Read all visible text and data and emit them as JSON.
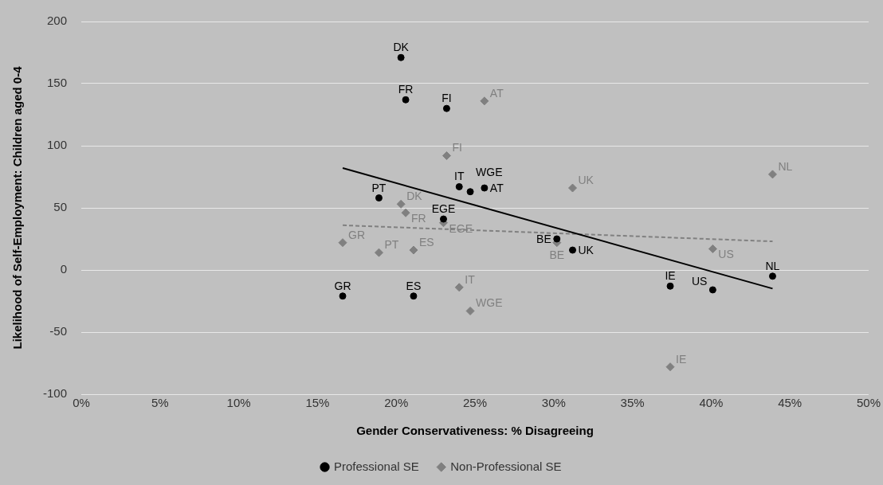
{
  "chart_data": {
    "type": "scatter",
    "xlabel": "Gender Conservativeness: % Disagreeing",
    "ylabel": "Likelihood of Self-Employment: Children aged 0-4",
    "xlim": [
      0,
      50
    ],
    "xticks": [
      {
        "value": 0,
        "label": "0%"
      },
      {
        "value": 5,
        "label": "5%"
      },
      {
        "value": 10,
        "label": "10%"
      },
      {
        "value": 15,
        "label": "15%"
      },
      {
        "value": 20,
        "label": "20%"
      },
      {
        "value": 25,
        "label": "25%"
      },
      {
        "value": 30,
        "label": "30%"
      },
      {
        "value": 35,
        "label": "35%"
      },
      {
        "value": 40,
        "label": "40%"
      },
      {
        "value": 45,
        "label": "45%"
      },
      {
        "value": 50,
        "label": "50%"
      }
    ],
    "ylim": [
      -100,
      200
    ],
    "yticks": [
      -100,
      -50,
      0,
      50,
      100,
      150,
      200
    ],
    "grid": "y",
    "legend": "bottom",
    "series": [
      {
        "name": "Professional SE",
        "color": "#000000",
        "marker": "circle",
        "x": [
          20.3,
          20.6,
          23.2,
          24.0,
          24.7,
          25.6,
          18.9,
          23.0,
          30.2,
          31.2,
          37.4,
          40.1,
          43.9,
          16.6,
          21.1
        ],
        "values": [
          171,
          137,
          130,
          67,
          63,
          66,
          58,
          41,
          25,
          16,
          -13,
          -16,
          -5,
          -21,
          -21
        ]
      },
      {
        "name": "Non-Professional SE",
        "color": "#808080",
        "marker": "diamond",
        "x": [
          25.6,
          23.2,
          31.2,
          43.9,
          20.3,
          20.6,
          23.0,
          16.6,
          18.9,
          21.1,
          30.2,
          40.1,
          24.0,
          24.7,
          37.4
        ],
        "values": [
          136,
          92,
          66,
          77,
          53,
          46,
          38,
          22,
          14,
          16,
          22,
          17,
          -14,
          -33,
          -78
        ]
      },
      {
        "type": "line",
        "color": "#000000",
        "line_style": "solid",
        "marker": "none",
        "x": [
          16.6,
          43.9
        ],
        "values": [
          82,
          -15
        ]
      },
      {
        "type": "line",
        "color": "#808080",
        "line_style": "dashed",
        "marker": "none",
        "x": [
          16.6,
          43.9
        ],
        "values": [
          36,
          23
        ]
      }
    ],
    "annotations": [
      {
        "text": "DK",
        "x": 20.3,
        "y": 171
      },
      {
        "text": "FR",
        "x": 20.6,
        "y": 137
      },
      {
        "text": "FI",
        "x": 23.2,
        "y": 130
      },
      {
        "text": "IT",
        "x": 24.0,
        "y": 67
      },
      {
        "text": "WGE",
        "x": 24.7,
        "y": 63
      },
      {
        "text": "AT",
        "x": 25.6,
        "y": 66
      },
      {
        "text": "PT",
        "x": 18.9,
        "y": 58
      },
      {
        "text": "EGE",
        "x": 23.0,
        "y": 41
      },
      {
        "text": "BE",
        "x": 30.2,
        "y": 25
      },
      {
        "text": "UK",
        "x": 31.2,
        "y": 16
      },
      {
        "text": "IE",
        "x": 37.4,
        "y": -13
      },
      {
        "text": "US",
        "x": 40.1,
        "y": -16
      },
      {
        "text": "NL",
        "x": 43.9,
        "y": -5
      },
      {
        "text": "GR",
        "x": 16.6,
        "y": -21
      },
      {
        "text": "ES",
        "x": 21.1,
        "y": -21
      },
      {
        "text": "AT",
        "x": 25.6,
        "y": 136
      },
      {
        "text": "FI",
        "x": 23.2,
        "y": 92
      },
      {
        "text": "UK",
        "x": 31.2,
        "y": 66
      },
      {
        "text": "NL",
        "x": 43.9,
        "y": 77
      },
      {
        "text": "DK",
        "x": 20.3,
        "y": 53
      },
      {
        "text": "FR",
        "x": 20.6,
        "y": 46
      },
      {
        "text": "EGE",
        "x": 23.0,
        "y": 38
      },
      {
        "text": "GR",
        "x": 16.6,
        "y": 22
      },
      {
        "text": "PT",
        "x": 18.9,
        "y": 14
      },
      {
        "text": "ES",
        "x": 21.1,
        "y": 16
      },
      {
        "text": "BE",
        "x": 30.2,
        "y": 22
      },
      {
        "text": "US",
        "x": 40.1,
        "y": 17
      },
      {
        "text": "IT",
        "x": 24.0,
        "y": -14
      },
      {
        "text": "WGE",
        "x": 24.7,
        "y": -33
      },
      {
        "text": "IE",
        "x": 37.4,
        "y": -78
      }
    ]
  }
}
